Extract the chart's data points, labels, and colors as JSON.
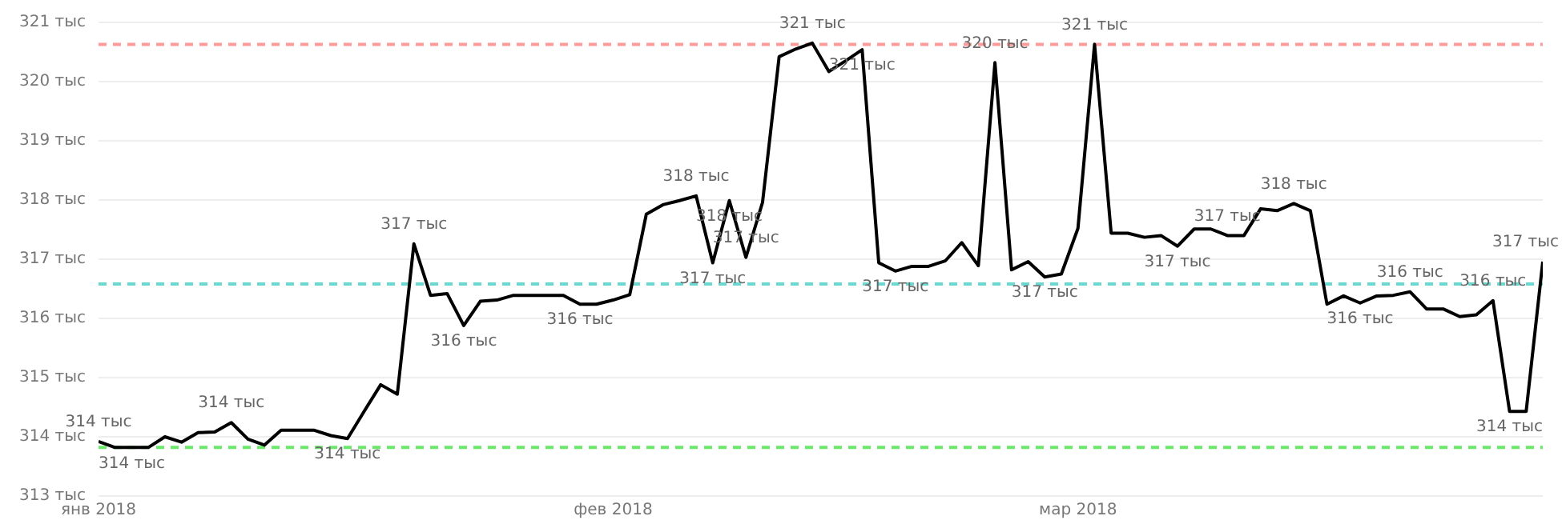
{
  "chart_data": {
    "type": "line",
    "x": [
      "2018-01-01",
      "2018-01-02",
      "2018-01-03",
      "2018-01-04",
      "2018-01-05",
      "2018-01-06",
      "2018-01-07",
      "2018-01-08",
      "2018-01-09",
      "2018-01-10",
      "2018-01-11",
      "2018-01-12",
      "2018-01-13",
      "2018-01-14",
      "2018-01-15",
      "2018-01-16",
      "2018-01-17",
      "2018-01-18",
      "2018-01-19",
      "2018-01-20",
      "2018-01-21",
      "2018-01-22",
      "2018-01-23",
      "2018-01-24",
      "2018-01-25",
      "2018-01-26",
      "2018-01-27",
      "2018-01-28",
      "2018-01-29",
      "2018-01-30",
      "2018-01-31",
      "2018-02-01",
      "2018-02-02",
      "2018-02-03",
      "2018-02-04",
      "2018-02-05",
      "2018-02-06",
      "2018-02-07",
      "2018-02-08",
      "2018-02-09",
      "2018-02-10",
      "2018-02-11",
      "2018-02-12",
      "2018-02-13",
      "2018-02-14",
      "2018-02-15",
      "2018-02-16",
      "2018-02-17",
      "2018-02-18",
      "2018-02-19",
      "2018-02-20",
      "2018-02-21",
      "2018-02-22",
      "2018-02-23",
      "2018-02-24",
      "2018-02-25",
      "2018-02-26",
      "2018-02-27",
      "2018-02-28",
      "2018-03-01",
      "2018-03-02",
      "2018-03-03",
      "2018-03-04",
      "2018-03-05",
      "2018-03-06",
      "2018-03-07",
      "2018-03-08",
      "2018-03-09",
      "2018-03-10",
      "2018-03-11",
      "2018-03-12",
      "2018-03-13",
      "2018-03-14",
      "2018-03-15",
      "2018-03-16",
      "2018-03-17",
      "2018-03-18",
      "2018-03-19",
      "2018-03-20",
      "2018-03-21",
      "2018-03-22",
      "2018-03-23",
      "2018-03-24",
      "2018-03-25",
      "2018-03-26",
      "2018-03-27",
      "2018-03-28",
      "2018-03-29"
    ],
    "series": [
      {
        "color": "#000000",
        "values": [
          313.92,
          313.82,
          313.82,
          313.82,
          314.0,
          313.91,
          314.07,
          314.08,
          314.24,
          313.96,
          313.86,
          314.11,
          314.11,
          314.11,
          314.02,
          313.97,
          314.43,
          314.88,
          314.72,
          317.26,
          316.39,
          316.42,
          315.88,
          316.29,
          316.31,
          316.39,
          316.39,
          316.39,
          316.39,
          316.24,
          316.24,
          316.31,
          316.4,
          317.76,
          317.92,
          317.99,
          318.07,
          316.94,
          317.99,
          317.03,
          317.96,
          320.42,
          320.55,
          320.65,
          320.17,
          320.35,
          320.54,
          316.94,
          316.8,
          316.88,
          316.88,
          316.97,
          317.28,
          316.89,
          320.32,
          316.82,
          316.96,
          316.7,
          316.75,
          317.52,
          320.63,
          317.44,
          317.44,
          317.37,
          317.4,
          317.22,
          317.51,
          317.51,
          317.4,
          317.4,
          317.85,
          317.82,
          317.94,
          317.82,
          316.24,
          316.38,
          316.26,
          316.38,
          316.39,
          316.45,
          316.16,
          316.16,
          316.03,
          316.06,
          316.3,
          314.43,
          314.43,
          316.96
        ],
        "value_labels": [
          "314 тыс",
          null,
          "314 тыс",
          null,
          null,
          null,
          null,
          null,
          "314 тыс",
          null,
          null,
          null,
          null,
          null,
          null,
          "314 тыс",
          null,
          null,
          null,
          "317 тыс",
          null,
          null,
          "316 тыс",
          null,
          null,
          null,
          null,
          null,
          null,
          "316 тыс",
          null,
          null,
          null,
          null,
          null,
          null,
          "318 тыс",
          "317 тыс",
          "318 тыс",
          "317 тыс",
          null,
          null,
          null,
          "321 тыс",
          null,
          null,
          "321 тыс",
          null,
          "317 тыс",
          null,
          null,
          null,
          null,
          null,
          "320 тыс",
          null,
          null,
          "317 тыс",
          null,
          null,
          "321 тыс",
          null,
          null,
          null,
          null,
          "317 тыс",
          null,
          null,
          "317 тыс",
          null,
          null,
          null,
          "318 тыс",
          null,
          null,
          null,
          "316 тыс",
          null,
          null,
          "316 тыс",
          null,
          null,
          null,
          null,
          "316 тыс",
          "314 тыс",
          null,
          "317 тыс"
        ]
      }
    ],
    "xlim": [
      "2018-01-01",
      "2018-03-29"
    ],
    "xticks": [
      {
        "value": "2018-01-01",
        "label": "янв 2018"
      },
      {
        "value": "2018-02-01",
        "label": "фев 2018"
      },
      {
        "value": "2018-03-01",
        "label": "мар 2018"
      }
    ],
    "ylim": [
      313,
      321
    ],
    "yticks": [
      {
        "value": 313,
        "label": "313 тыс"
      },
      {
        "value": 314,
        "label": "314 тыс"
      },
      {
        "value": 315,
        "label": "315 тыс"
      },
      {
        "value": 316,
        "label": "316 тыс"
      },
      {
        "value": 317,
        "label": "317 тыс"
      },
      {
        "value": 318,
        "label": "318 тыс"
      },
      {
        "value": 319,
        "label": "319 тыс"
      },
      {
        "value": 320,
        "label": "320 тыс"
      },
      {
        "value": 321,
        "label": "321 тыс"
      }
    ],
    "ref_lines": [
      {
        "axis": "y",
        "value": 320.63,
        "color": "#ff9a9a",
        "line_style": "dashed"
      },
      {
        "axis": "y",
        "value": 316.58,
        "color": "#6ad8d0",
        "line_style": "dashed"
      },
      {
        "axis": "y",
        "value": 313.82,
        "color": "#6ae86a",
        "line_style": "dashed"
      }
    ],
    "grid": "y",
    "legend": false,
    "marker": "none",
    "line_style": "solid"
  }
}
